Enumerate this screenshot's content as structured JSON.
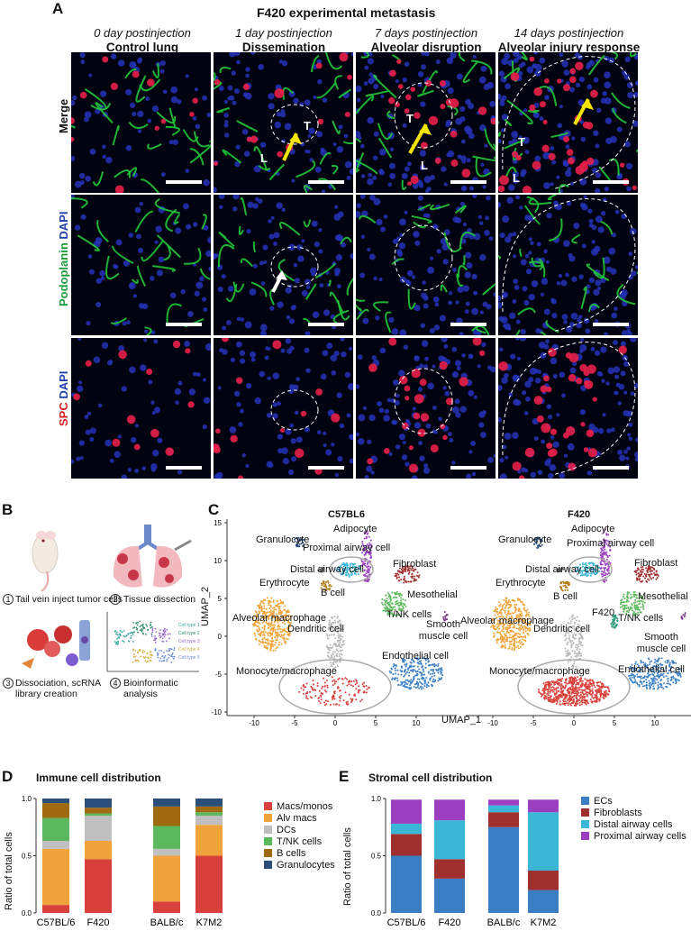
{
  "panel_a": {
    "letter": "A",
    "title": "F420 experimental metastasis",
    "columns": [
      {
        "day": "0 day postinjection",
        "name": "Control lung"
      },
      {
        "day": "1 day postinjection",
        "name": "Dissemination"
      },
      {
        "day": "7 days postinjection",
        "name": "Alveolar disruption"
      },
      {
        "day": "14 days postinjection",
        "name": "Alveolar injury response"
      }
    ],
    "rows": [
      {
        "label_parts": [
          {
            "text": "Merge",
            "color": "#111111"
          }
        ]
      },
      {
        "label_parts": [
          {
            "text": "Podoplanin ",
            "color": "#1a9a3a"
          },
          {
            "text": "DAPI",
            "color": "#1f3fa8"
          }
        ]
      },
      {
        "label_parts": [
          {
            "text": "SPC ",
            "color": "#d62020"
          },
          {
            "text": "DAPI",
            "color": "#1f3fa8"
          }
        ]
      }
    ],
    "annotations": {
      "T": "T",
      "L": "L"
    },
    "colors": {
      "podoplanin": "#22c83a",
      "dapi": "#2533b8",
      "spc": "#e8204a",
      "arrow_yellow": "#f5e400",
      "arrow_white": "#ffffff",
      "background": "#020310"
    }
  },
  "panel_b": {
    "letter": "B",
    "steps": [
      {
        "num": "1",
        "text": "Tail vein inject tumor cells"
      },
      {
        "num": "2",
        "text": "Tissue dissection"
      },
      {
        "num": "3",
        "text": "Dissociation, scRNA library creation"
      },
      {
        "num": "4",
        "text": "Bioinformatic analysis"
      }
    ],
    "mini_umap_legend": [
      "Cell type 1",
      "Cell type 2",
      "Cell type 3",
      "Cell type 4",
      "Cell type 5"
    ]
  },
  "panel_c": {
    "letter": "C",
    "xlabel": "UMAP_1",
    "ylabel": "UMAP_2",
    "yticks": [
      "15",
      "10",
      "5",
      "0",
      "-5",
      "-10"
    ],
    "left": {
      "title": "C57BL6",
      "xticks": [
        "-10",
        "-5",
        "0",
        "5",
        "10"
      ],
      "labels": [
        "Adipocyte",
        "Granulocyte",
        "Proximal airway cell",
        "Distal airway cell",
        "Fibroblast",
        "Erythrocyte",
        "B cell",
        "Mesothelial",
        "T/NK cells",
        "Alveolar macrophage",
        "Dendritic cell",
        "Smooth muscle cell",
        "Endothelial cell",
        "Monocyte/macrophage"
      ]
    },
    "right": {
      "title": "F420",
      "xticks": [
        "-10",
        "-5",
        "0",
        "5",
        "10"
      ],
      "labels": [
        "Adipocyte",
        "Granulocyte",
        "Proximal airway cell",
        "Distal airway cell",
        "Fibroblast",
        "Erythrocyte",
        "B cell",
        "Mesothelial",
        "F420",
        "T/NK cells",
        "Alveolar macrophage",
        "Dendritic cell",
        "Smooth muscle cell",
        "Endothelial cell",
        "Monocyte/macrophage"
      ]
    },
    "colors": {
      "macro": "#f0a33a",
      "mono": "#d8403b",
      "dend": "#b8b8b8",
      "endo": "#3a7fc4",
      "tnk": "#5cb85c",
      "prox": "#9b3fc0",
      "distal": "#3ab6d6",
      "fib": "#a03030",
      "gran": "#2b4f7a",
      "bcell": "#b07a10",
      "ery": "#606060",
      "meso": "#7a3a8a",
      "f420": "#2f9a7a"
    }
  },
  "chart_data": [
    {
      "type": "bar",
      "panel": "D",
      "title": "Immune cell distribution",
      "xlabel": "",
      "ylabel": "Ratio of total cells",
      "ylim": [
        0,
        1
      ],
      "yticks": [
        "0.0",
        "0.5",
        "1.0"
      ],
      "categories": [
        "C57BL/6",
        "F420",
        "BALB/c",
        "K7M2"
      ],
      "stacked": true,
      "legend_position": "right",
      "series": [
        {
          "name": "Macs/monos",
          "color": "#d8403b",
          "values": [
            0.07,
            0.47,
            0.1,
            0.5
          ]
        },
        {
          "name": "Alv macs",
          "color": "#f0a33a",
          "values": [
            0.49,
            0.16,
            0.4,
            0.27
          ]
        },
        {
          "name": "DCs",
          "color": "#bfbfbf",
          "values": [
            0.07,
            0.22,
            0.06,
            0.08
          ]
        },
        {
          "name": "T/NK cells",
          "color": "#5cb85c",
          "values": [
            0.2,
            0.02,
            0.2,
            0.03
          ]
        },
        {
          "name": "B cells",
          "color": "#a06a10",
          "values": [
            0.13,
            0.05,
            0.17,
            0.05
          ]
        },
        {
          "name": "Granulocytes",
          "color": "#2b4f7a",
          "values": [
            0.04,
            0.08,
            0.07,
            0.07
          ]
        }
      ]
    },
    {
      "type": "bar",
      "panel": "E",
      "title": "Stromal cell distribution",
      "xlabel": "",
      "ylabel": "Ratio of total cells",
      "ylim": [
        0,
        1
      ],
      "yticks": [
        "0.0",
        "0.5",
        "1.0"
      ],
      "categories": [
        "C57BL/6",
        "F420",
        "BALB/c",
        "K7M2"
      ],
      "stacked": true,
      "legend_position": "right",
      "series": [
        {
          "name": "ECs",
          "color": "#3a7fc4",
          "values": [
            0.5,
            0.3,
            0.75,
            0.2
          ]
        },
        {
          "name": "Fibroblasts",
          "color": "#a03030",
          "values": [
            0.19,
            0.17,
            0.13,
            0.17
          ]
        },
        {
          "name": "Distal airway cells",
          "color": "#3ab6d6",
          "values": [
            0.09,
            0.34,
            0.06,
            0.51
          ]
        },
        {
          "name": "Proximal airway cells",
          "color": "#9b3fc0",
          "values": [
            0.21,
            0.18,
            0.05,
            0.11
          ]
        }
      ]
    }
  ]
}
